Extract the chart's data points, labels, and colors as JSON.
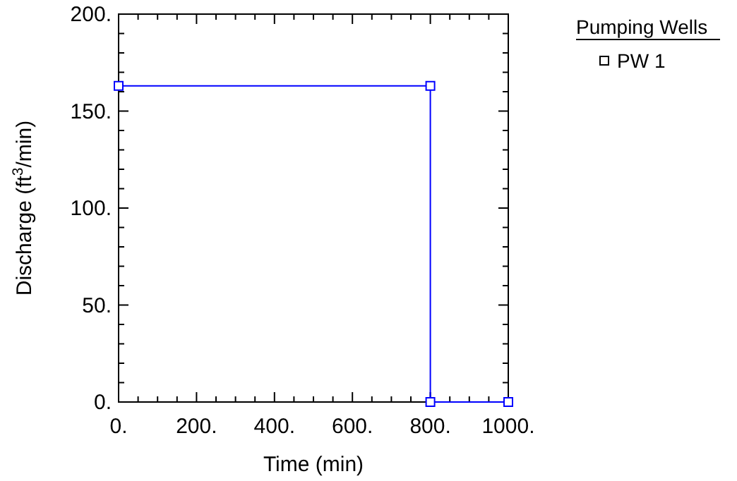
{
  "chart_data": {
    "type": "line",
    "xlabel": "Time (min)",
    "ylabel": "Discharge (ft$^{3}$/min)",
    "legend_title": "Pumping Wells",
    "legend": "right",
    "marker": "square",
    "line_style": "solid",
    "grid": false,
    "xlim": [
      0,
      1000
    ],
    "ylim": [
      0,
      200
    ],
    "xticks": [
      {
        "value": 0,
        "label": "0."
      },
      {
        "value": 50,
        "label": null
      },
      {
        "value": 100,
        "label": null
      },
      {
        "value": 150,
        "label": null
      },
      {
        "value": 200,
        "label": "200."
      },
      {
        "value": 250,
        "label": null
      },
      {
        "value": 300,
        "label": null
      },
      {
        "value": 350,
        "label": null
      },
      {
        "value": 400,
        "label": "400."
      },
      {
        "value": 450,
        "label": null
      },
      {
        "value": 500,
        "label": null
      },
      {
        "value": 550,
        "label": null
      },
      {
        "value": 600,
        "label": "600."
      },
      {
        "value": 650,
        "label": null
      },
      {
        "value": 700,
        "label": null
      },
      {
        "value": 750,
        "label": null
      },
      {
        "value": 800,
        "label": "800."
      },
      {
        "value": 850,
        "label": null
      },
      {
        "value": 900,
        "label": null
      },
      {
        "value": 950,
        "label": null
      },
      {
        "value": 1000,
        "label": "1000."
      }
    ],
    "yticks": [
      {
        "value": 0,
        "label": "0."
      },
      {
        "value": 10,
        "label": null
      },
      {
        "value": 20,
        "label": null
      },
      {
        "value": 30,
        "label": null
      },
      {
        "value": 40,
        "label": null
      },
      {
        "value": 50,
        "label": "50."
      },
      {
        "value": 60,
        "label": null
      },
      {
        "value": 70,
        "label": null
      },
      {
        "value": 80,
        "label": null
      },
      {
        "value": 90,
        "label": null
      },
      {
        "value": 100,
        "label": "100."
      },
      {
        "value": 110,
        "label": null
      },
      {
        "value": 120,
        "label": null
      },
      {
        "value": 130,
        "label": null
      },
      {
        "value": 140,
        "label": null
      },
      {
        "value": 150,
        "label": "150."
      },
      {
        "value": 160,
        "label": null
      },
      {
        "value": 170,
        "label": null
      },
      {
        "value": 180,
        "label": null
      },
      {
        "value": 190,
        "label": null
      },
      {
        "value": 200,
        "label": "200."
      }
    ],
    "series": [
      {
        "name": "PW 1",
        "color": "#0000ff",
        "x": [
          0,
          800,
          800,
          1000
        ],
        "values": [
          163,
          163,
          0,
          0
        ]
      }
    ]
  }
}
